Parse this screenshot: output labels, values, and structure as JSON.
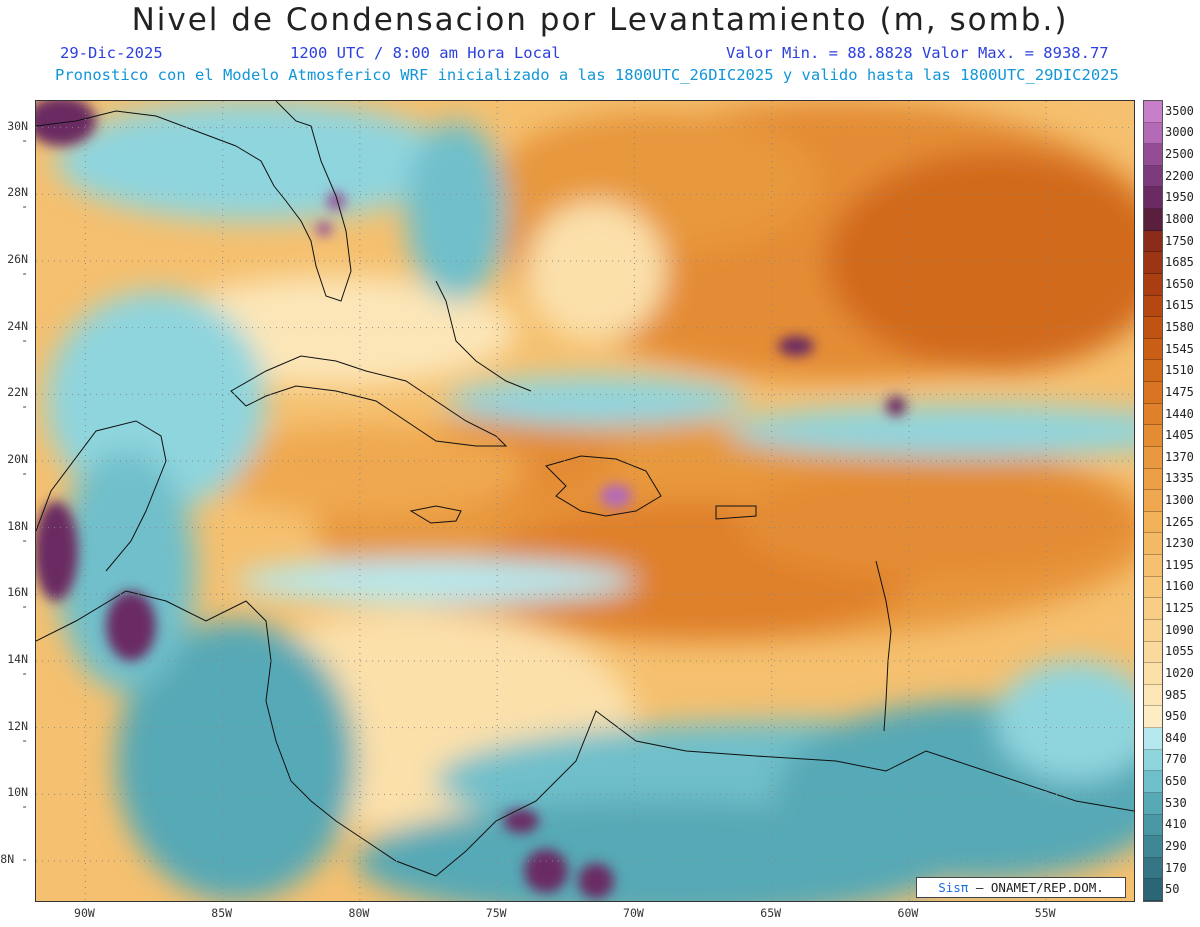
{
  "header": {
    "title": "Nivel de Condensacion por Levantamiento (m, somb.)",
    "date": "29-Dic-2025",
    "time": "1200 UTC / 8:00 am Hora Local",
    "min_max": "Valor Min. = 88.8828  Valor Max. = 8938.77",
    "run_info": "Pronostico con el Modelo Atmosferico WRF inicializado a las 1800UTC_26DIC2025 y valido hasta las  1800UTC_29DIC2025"
  },
  "map": {
    "lat_labels": [
      "30N",
      "28N",
      "26N",
      "24N",
      "22N",
      "20N",
      "18N",
      "16N",
      "14N",
      "12N",
      "10N",
      "8N"
    ],
    "lat_values": [
      30,
      28,
      26,
      24,
      22,
      20,
      18,
      16,
      14,
      12,
      10,
      8
    ],
    "lon_labels": [
      "90W",
      "85W",
      "80W",
      "75W",
      "70W",
      "65W",
      "60W",
      "55W"
    ],
    "lon_values": [
      -90,
      -85,
      -80,
      -75,
      -70,
      -65,
      -60,
      -55
    ],
    "extent": {
      "lon_min": -91.8,
      "lon_max": -51.8,
      "lat_min": 6.8,
      "lat_max": 30.8
    }
  },
  "colorbar": {
    "labels": [
      "3500",
      "3000",
      "2500",
      "2200",
      "1950",
      "1800",
      "1750",
      "1685",
      "1650",
      "1615",
      "1580",
      "1545",
      "1510",
      "1475",
      "1440",
      "1405",
      "1370",
      "1335",
      "1300",
      "1265",
      "1230",
      "1195",
      "1160",
      "1125",
      "1090",
      "1055",
      "1020",
      "985",
      "950",
      "840",
      "770",
      "650",
      "530",
      "410",
      "290",
      "170",
      "50"
    ],
    "colors": [
      "#c77fc9",
      "#b36bb8",
      "#944c94",
      "#7d3a7d",
      "#6a2a62",
      "#5a1f3c",
      "#8b2c1a",
      "#9b3514",
      "#a83e12",
      "#b44810",
      "#bf5312",
      "#c95e16",
      "#d26a1c",
      "#d97522",
      "#df802a",
      "#e48c34",
      "#e8983e",
      "#ec9f46",
      "#efa84f",
      "#f1b159",
      "#f3b964",
      "#f5c06f",
      "#f7c77a",
      "#f8cd86",
      "#f9d392",
      "#fad99e",
      "#fbe0aa",
      "#fce6b8",
      "#fdecc4",
      "#b6e9ef",
      "#8fd5de",
      "#6fbfca",
      "#57a9b6",
      "#4a98a5",
      "#3f8795",
      "#357585",
      "#2b6676"
    ]
  },
  "credit": {
    "logo": "Sisπ",
    "text": "– ONAMET/REP.DOM."
  }
}
